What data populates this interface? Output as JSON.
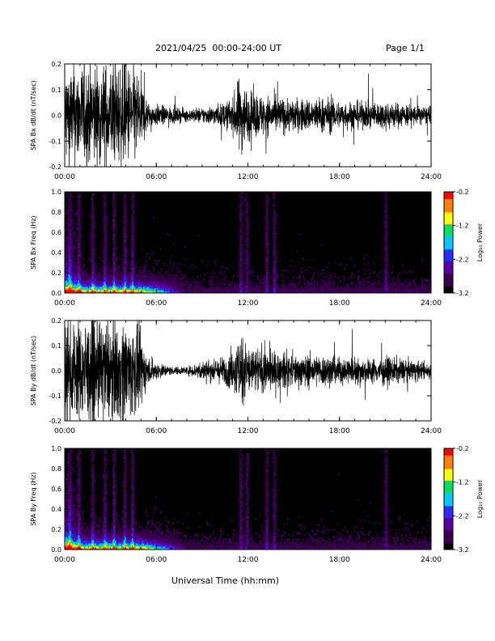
{
  "header": {
    "date_range": "2021/04/25  00:00-24:00 UT",
    "page": "Page 1/1"
  },
  "footer": {
    "xlabel": "Universal Time (hh:mm)"
  },
  "colors": {
    "trace": "#000000",
    "colormap": [
      "#000000",
      "#3a0050",
      "#5a00a0",
      "#2a2aff",
      "#00c8ff",
      "#00e060",
      "#ffff00",
      "#ff8000",
      "#ff0000"
    ]
  },
  "chart_data": [
    {
      "type": "line",
      "ylabel": "SPA Bx dB/dt (nT/sec)",
      "ylim": [
        -0.2,
        0.2
      ],
      "yticks": [
        "-0.2",
        "-0.1",
        "0.0",
        "0.1",
        "0.2"
      ],
      "xlim": [
        "00:00",
        "24:00"
      ],
      "xticks": [
        "00:00",
        "06:00",
        "12:00",
        "18:00",
        "24:00"
      ],
      "amplitude_envelope": {
        "hours": [
          0,
          1,
          2,
          3,
          4,
          4.8,
          5.5,
          7,
          8,
          9,
          10,
          11,
          11.5,
          12,
          13,
          14,
          15,
          16,
          17,
          18,
          19,
          20,
          21,
          22,
          23,
          24
        ],
        "values": [
          0.25,
          0.25,
          0.25,
          0.25,
          0.25,
          0.22,
          0.06,
          0.04,
          0.03,
          0.04,
          0.05,
          0.08,
          0.2,
          0.12,
          0.1,
          0.09,
          0.08,
          0.08,
          0.09,
          0.07,
          0.07,
          0.06,
          0.07,
          0.06,
          0.05,
          0.04
        ]
      }
    },
    {
      "type": "heatmap",
      "ylabel": "SPA Bx Freq (Hz)",
      "ylim": [
        0.0,
        1.0
      ],
      "yticks": [
        "0.0",
        "0.2",
        "0.4",
        "0.6",
        "0.8",
        "1.0"
      ],
      "xlim": [
        "00:00",
        "24:00"
      ],
      "xticks": [
        "00:00",
        "06:00",
        "12:00",
        "18:00",
        "24:00"
      ],
      "colorbar": {
        "label": "Log₁₀ Power",
        "range": [
          -3.2,
          -0.2
        ],
        "ticks": [
          "-3.2",
          "-2.2",
          "-1.2",
          "-0.2"
        ]
      },
      "activity_bursts_hours": [
        0.3,
        0.9,
        1.8,
        2.6,
        3.2,
        3.9,
        4.4,
        11.5,
        11.9,
        13.2,
        13.7,
        21.0
      ]
    },
    {
      "type": "line",
      "ylabel": "SPA By dB/dt (nT/sec)",
      "ylim": [
        -0.2,
        0.2
      ],
      "yticks": [
        "-0.2",
        "-0.1",
        "0.0",
        "0.1",
        "0.2"
      ],
      "xlim": [
        "00:00",
        "24:00"
      ],
      "xticks": [
        "00:00",
        "06:00",
        "12:00",
        "18:00",
        "24:00"
      ],
      "amplitude_envelope": {
        "hours": [
          0,
          1,
          2,
          3,
          4,
          4.8,
          5.5,
          7,
          8,
          9,
          10,
          11,
          11.5,
          12,
          13,
          14,
          15,
          16,
          17,
          18,
          19,
          20,
          21,
          22,
          23,
          24
        ],
        "values": [
          0.25,
          0.25,
          0.25,
          0.25,
          0.25,
          0.22,
          0.06,
          0.02,
          0.02,
          0.05,
          0.06,
          0.09,
          0.2,
          0.13,
          0.11,
          0.09,
          0.08,
          0.08,
          0.08,
          0.07,
          0.07,
          0.06,
          0.07,
          0.06,
          0.05,
          0.04
        ]
      }
    },
    {
      "type": "heatmap",
      "ylabel": "SPA By Freq (Hz)",
      "ylim": [
        0.0,
        1.0
      ],
      "yticks": [
        "0.0",
        "0.2",
        "0.4",
        "0.6",
        "0.8",
        "1.0"
      ],
      "xlim": [
        "00:00",
        "24:00"
      ],
      "xticks": [
        "00:00",
        "06:00",
        "12:00",
        "18:00",
        "24:00"
      ],
      "colorbar": {
        "label": "Log₁₀ Power",
        "range": [
          -3.2,
          -0.2
        ],
        "ticks": [
          "-3.2",
          "-2.2",
          "-1.2",
          "-0.2"
        ]
      },
      "activity_bursts_hours": [
        0.3,
        0.9,
        1.8,
        2.6,
        3.2,
        3.9,
        4.4,
        11.5,
        11.9,
        13.2,
        13.7,
        21.0
      ]
    }
  ]
}
